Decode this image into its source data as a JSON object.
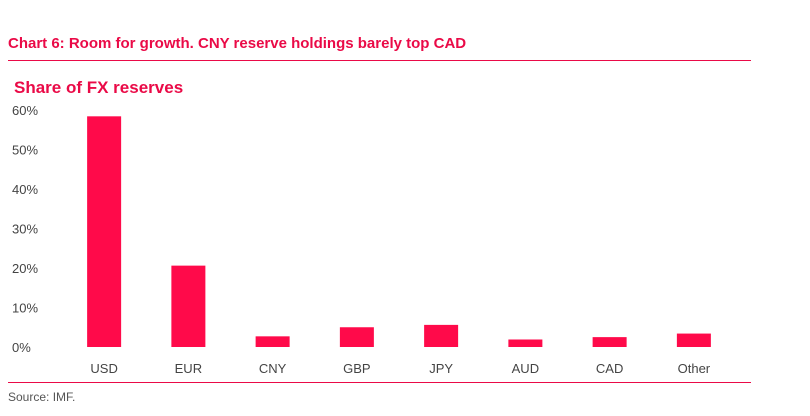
{
  "header": {
    "title": "Chart 6: Room for growth. CNY reserve holdings barely top CAD"
  },
  "chart_data": {
    "type": "bar",
    "title": "Share of FX reserves",
    "categories": [
      "USD",
      "EUR",
      "CNY",
      "GBP",
      "JPY",
      "AUD",
      "CAD",
      "Other"
    ],
    "values": [
      58.4,
      20.6,
      2.7,
      5.0,
      5.6,
      1.9,
      2.5,
      3.4
    ],
    "yticks": [
      "0%",
      "10%",
      "20%",
      "30%",
      "40%",
      "50%",
      "60%"
    ],
    "ylim": [
      0,
      60
    ],
    "xlabel": "",
    "ylabel": "",
    "grid": false,
    "legend": "none",
    "bar_color": "#ff0a4a"
  },
  "footer": {
    "source": "Source: IMF."
  }
}
